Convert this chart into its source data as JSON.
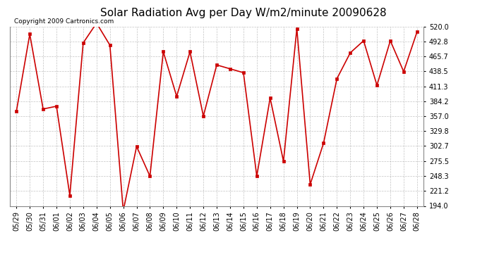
{
  "title": "Solar Radiation Avg per Day W/m2/minute 20090628",
  "copyright": "Copyright 2009 Cartronics.com",
  "dates": [
    "05/29",
    "05/30",
    "05/31",
    "06/01",
    "06/02",
    "06/03",
    "06/04",
    "06/05",
    "06/06",
    "06/07",
    "06/08",
    "06/09",
    "06/10",
    "06/11",
    "06/12",
    "06/13",
    "06/14",
    "06/15",
    "06/16",
    "06/17",
    "06/18",
    "06/19",
    "06/20",
    "06/21",
    "06/22",
    "06/23",
    "06/24",
    "06/25",
    "06/26",
    "06/27",
    "06/28"
  ],
  "values": [
    366,
    506,
    370,
    375,
    213,
    490,
    526,
    486,
    185,
    302,
    248,
    474,
    393,
    474,
    357,
    450,
    443,
    436,
    248,
    390,
    275,
    516,
    233,
    308,
    425,
    472,
    494,
    413,
    494,
    438,
    510
  ],
  "line_color": "#cc0000",
  "marker_color": "#cc0000",
  "bg_color": "#ffffff",
  "grid_color": "#aaaaaa",
  "ylim": [
    194.0,
    520.0
  ],
  "yticks": [
    194.0,
    221.2,
    248.3,
    275.5,
    302.7,
    329.8,
    357.0,
    384.2,
    411.3,
    438.5,
    465.7,
    492.8,
    520.0
  ],
  "title_fontsize": 11,
  "copyright_fontsize": 6.5,
  "tick_fontsize": 7,
  "figwidth": 6.9,
  "figheight": 3.75,
  "dpi": 100
}
